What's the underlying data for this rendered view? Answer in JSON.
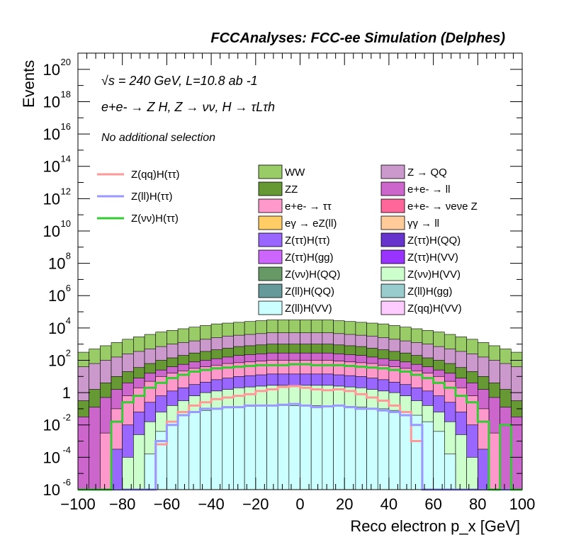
{
  "chart_data": {
    "type": "histogram",
    "title": "FCCAnalyses: FCC-ee Simulation (Delphes)",
    "annotations": {
      "energy": "√s = 240 GeV, L=10.8 ab -1",
      "process": "e+e- → Z H, Z → νν, H → τLτh",
      "selection": "No additional selection"
    },
    "xlabel": "Reco electron p_x [GeV]",
    "ylabel": "Events",
    "xlim": [
      -100,
      100
    ],
    "ylim_log10": [
      -6,
      21
    ],
    "y_log_scale": true,
    "grid": false,
    "x_ticks": [
      -100,
      -80,
      -60,
      -40,
      -20,
      0,
      20,
      40,
      60,
      80,
      100
    ],
    "x_tick_labels": [
      "−100",
      "−80",
      "−60",
      "−40",
      "−20",
      "0",
      "20",
      "40",
      "60",
      "80",
      "100"
    ],
    "y_ticks_log10": [
      -6,
      -4,
      -2,
      0,
      2,
      4,
      6,
      8,
      10,
      12,
      14,
      16,
      18,
      20
    ],
    "y_tick_labels": [
      "10-6",
      "10-4",
      "10-2",
      "1",
      "102",
      "104",
      "106",
      "108",
      "1010",
      "1012",
      "1014",
      "1016",
      "1018",
      "1020"
    ],
    "stack_legend": [
      {
        "name": "WW",
        "color": "#99cc66"
      },
      {
        "name": "Z → QQ",
        "color": "#cc99cc"
      },
      {
        "name": "ZZ",
        "color": "#669933"
      },
      {
        "name": "e+e- → ll",
        "color": "#cc66cc"
      },
      {
        "name": "e+e- → ττ",
        "color": "#ff99cc"
      },
      {
        "name": "e+e- → νeνe Z",
        "color": "#ff6699"
      },
      {
        "name": "eγ → eZ(ll)",
        "color": "#ffcc66"
      },
      {
        "name": "γγ → ll",
        "color": "#ffcc99"
      },
      {
        "name": "Z(ττ)H(ττ)",
        "color": "#9966ff"
      },
      {
        "name": "Z(ττ)H(QQ)",
        "color": "#6633cc"
      },
      {
        "name": "Z(ττ)H(gg)",
        "color": "#cc66ff"
      },
      {
        "name": "Z(ττ)H(VV)",
        "color": "#9933ff"
      },
      {
        "name": "Z(νν)H(QQ)",
        "color": "#669966"
      },
      {
        "name": "Z(νν)H(VV)",
        "color": "#ccffcc"
      },
      {
        "name": "Z(ll)H(QQ)",
        "color": "#669999"
      },
      {
        "name": "Z(ll)H(gg)",
        "color": "#99cccc"
      },
      {
        "name": "Z(ll)H(VV)",
        "color": "#ccffff"
      },
      {
        "name": "Z(qq)H(VV)",
        "color": "#ffccff"
      }
    ],
    "signal_legend": [
      {
        "name": "Z(qq)H(ττ)",
        "color": "#ff9999"
      },
      {
        "name": "Z(ll)H(ττ)",
        "color": "#9999ff"
      },
      {
        "name": "Z(νν)H(ττ)",
        "color": "#33cc33"
      }
    ],
    "bin_centers": [
      -97.5,
      -92.5,
      -87.5,
      -82.5,
      -77.5,
      -72.5,
      -67.5,
      -62.5,
      -57.5,
      -52.5,
      -47.5,
      -42.5,
      -37.5,
      -32.5,
      -27.5,
      -22.5,
      -17.5,
      -12.5,
      -7.5,
      -2.5,
      2.5,
      7.5,
      12.5,
      17.5,
      22.5,
      27.5,
      32.5,
      37.5,
      42.5,
      47.5,
      52.5,
      57.5,
      62.5,
      67.5,
      72.5,
      77.5,
      82.5,
      87.5,
      92.5,
      97.5
    ],
    "stack_levels_log10": [
      {
        "name": "WW (total)",
        "values": [
          2.5,
          2.7,
          2.9,
          3.1,
          3.3,
          3.45,
          3.6,
          3.75,
          3.85,
          3.95,
          4.05,
          4.15,
          4.25,
          4.3,
          4.35,
          4.4,
          4.45,
          4.5,
          4.5,
          4.5,
          4.5,
          4.5,
          4.5,
          4.45,
          4.4,
          4.35,
          4.3,
          4.25,
          4.15,
          4.05,
          3.95,
          3.85,
          3.75,
          3.6,
          3.45,
          3.3,
          3.1,
          2.9,
          2.7,
          2.5
        ]
      },
      {
        "name": "Z → QQ",
        "values": [
          1.6,
          1.8,
          2.0,
          2.2,
          2.4,
          2.55,
          2.7,
          2.85,
          3.0,
          3.1,
          3.2,
          3.3,
          3.4,
          3.5,
          3.55,
          3.6,
          3.65,
          3.7,
          3.7,
          3.7,
          3.7,
          3.7,
          3.7,
          3.65,
          3.6,
          3.55,
          3.5,
          3.4,
          3.3,
          3.2,
          3.1,
          3.0,
          2.85,
          2.7,
          2.55,
          2.4,
          2.2,
          2.0,
          1.8,
          1.6
        ]
      },
      {
        "name": "ZZ",
        "values": [
          -0.5,
          0.2,
          0.6,
          1.0,
          1.3,
          1.55,
          1.8,
          2.0,
          2.15,
          2.3,
          2.45,
          2.55,
          2.65,
          2.75,
          2.85,
          2.9,
          2.95,
          3.0,
          3.0,
          3.0,
          3.0,
          3.0,
          3.0,
          2.95,
          2.9,
          2.85,
          2.75,
          2.65,
          2.55,
          2.45,
          2.3,
          2.15,
          2.0,
          1.8,
          1.55,
          1.3,
          1.0,
          0.6,
          0.2,
          -0.5
        ]
      },
      {
        "name": "e+e- → ll",
        "values": [
          -1.5,
          -0.9,
          -0.3,
          0.2,
          0.6,
          0.9,
          1.2,
          1.4,
          1.6,
          1.75,
          1.9,
          2.0,
          2.1,
          2.2,
          2.3,
          2.35,
          2.4,
          2.45,
          2.45,
          2.45,
          2.45,
          2.45,
          2.45,
          2.4,
          2.35,
          2.3,
          2.2,
          2.1,
          2.0,
          1.9,
          1.75,
          1.6,
          1.4,
          1.2,
          0.9,
          0.6,
          0.2,
          -0.3,
          -0.9,
          -1.5
        ]
      },
      {
        "name": "e+e- → ττ",
        "values": [
          -6,
          -6,
          -2.5,
          -1.0,
          -0.2,
          0.3,
          0.7,
          1.0,
          1.2,
          1.35,
          1.5,
          1.6,
          1.7,
          1.8,
          1.85,
          1.9,
          1.95,
          2.0,
          2.0,
          2.0,
          2.0,
          2.0,
          2.0,
          1.95,
          1.9,
          1.85,
          1.8,
          1.7,
          1.6,
          1.5,
          1.35,
          1.2,
          1.0,
          0.7,
          0.3,
          -0.2,
          -1.0,
          -2.5,
          -6,
          -6
        ]
      },
      {
        "name": "Z(ττ)H(ττ)",
        "values": [
          -6,
          -6,
          -6,
          -3.5,
          -2.0,
          -1.2,
          -0.6,
          -0.2,
          0.1,
          0.3,
          0.5,
          0.65,
          0.8,
          0.9,
          1.0,
          1.05,
          1.1,
          1.15,
          1.15,
          1.15,
          1.15,
          1.15,
          1.15,
          1.1,
          1.05,
          1.0,
          0.9,
          0.8,
          0.65,
          0.5,
          0.3,
          0.1,
          -0.2,
          -0.6,
          -1.2,
          -2.0,
          -3.5,
          -6,
          -6,
          -6
        ]
      },
      {
        "name": "Z(νν)H(VV)",
        "values": [
          -6,
          -6,
          -6,
          -6,
          -4.0,
          -2.6,
          -1.8,
          -1.2,
          -0.8,
          -0.5,
          -0.2,
          0.0,
          0.1,
          0.2,
          0.3,
          0.35,
          0.4,
          0.45,
          0.45,
          0.45,
          0.45,
          0.45,
          0.45,
          0.4,
          0.35,
          0.3,
          0.2,
          0.1,
          0.0,
          -0.2,
          -0.5,
          -0.8,
          -1.2,
          -1.8,
          -2.6,
          -4.0,
          -6,
          -6,
          -6,
          -6
        ]
      },
      {
        "name": "Z(ll)H(VV)",
        "values": [
          -6,
          -6,
          -6,
          -6,
          -6,
          -6,
          -3.8,
          -2.4,
          -1.8,
          -1.4,
          -1.2,
          -1.1,
          -1.0,
          -0.95,
          -0.9,
          -0.85,
          -0.8,
          -0.8,
          -0.8,
          -0.8,
          -0.8,
          -0.8,
          -0.8,
          -0.8,
          -0.85,
          -0.9,
          -0.95,
          -1.0,
          -1.1,
          -1.2,
          -1.4,
          -1.8,
          -2.4,
          -3.8,
          -6,
          -6,
          -6,
          -6,
          -6,
          -6
        ]
      }
    ],
    "signal_series_log10": [
      {
        "name": "Z(qq)H(ττ)",
        "values": [
          -6,
          -6,
          -6,
          -6,
          -6,
          -6,
          -6,
          -3.2,
          -1.8,
          -1.2,
          -0.8,
          -0.6,
          -0.4,
          -0.3,
          -0.2,
          -0.1,
          0.1,
          0.2,
          0.35,
          0.4,
          0.3,
          0.2,
          0.15,
          0.2,
          0.1,
          -0.1,
          -0.3,
          -0.5,
          -0.8,
          -1.2,
          -3.0,
          -6,
          -6,
          -6,
          -6,
          -6,
          -6,
          -6,
          -6,
          -6
        ]
      },
      {
        "name": "Z(ll)H(ττ)",
        "values": [
          -6,
          -6,
          -6,
          -6,
          -6,
          -6,
          -6,
          -3.0,
          -2.0,
          -1.4,
          -1.2,
          -1.0,
          -1.0,
          -0.9,
          -0.9,
          -0.8,
          -0.8,
          -0.8,
          -0.75,
          -0.7,
          -0.8,
          -0.9,
          -0.85,
          -0.8,
          -0.9,
          -1.0,
          -1.0,
          -1.1,
          -1.2,
          -1.4,
          -2.0,
          -6,
          -6,
          -6,
          -6,
          -6,
          -6,
          -6,
          -6,
          -6
        ]
      },
      {
        "name": "Z(νν)H(ττ)",
        "values": [
          -6,
          -6,
          -6,
          -1.8,
          -0.6,
          -0.2,
          0.3,
          0.6,
          0.9,
          1.1,
          1.3,
          1.4,
          1.5,
          1.55,
          1.6,
          1.65,
          1.7,
          1.7,
          1.7,
          1.75,
          1.75,
          1.7,
          1.7,
          1.7,
          1.65,
          1.6,
          1.55,
          1.5,
          1.4,
          1.3,
          1.1,
          0.9,
          0.6,
          0.3,
          -0.2,
          -0.6,
          -1.8,
          -6,
          -2.0,
          -6
        ]
      }
    ]
  }
}
